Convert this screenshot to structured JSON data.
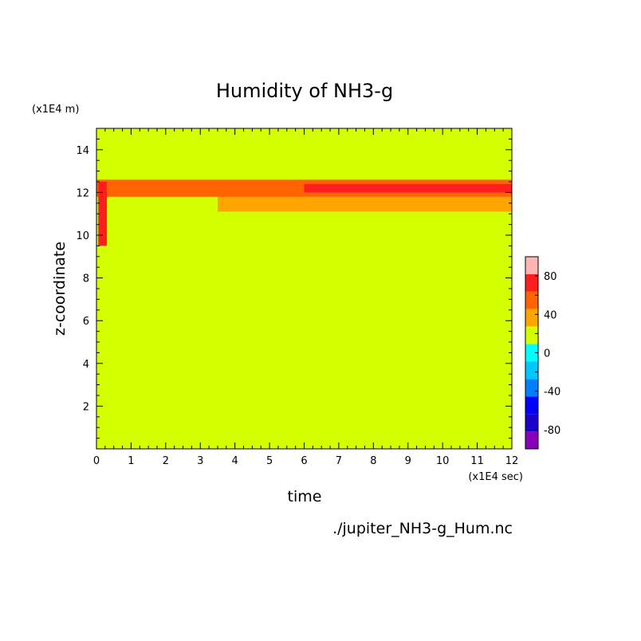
{
  "chart_data": {
    "type": "heatmap",
    "title": "Humidity of NH3-g",
    "xlabel": "time",
    "ylabel": "z-coordinate",
    "x_units": "(x1E4 sec)",
    "y_units": "(x1E4 m)",
    "xlim": [
      0,
      12
    ],
    "ylim": [
      0,
      15
    ],
    "x_ticks": [
      "0",
      "1",
      "2",
      "3",
      "4",
      "5",
      "6",
      "7",
      "8",
      "9",
      "10",
      "11",
      "12"
    ],
    "y_ticks": [
      "2",
      "4",
      "6",
      "8",
      "10",
      "12",
      "14"
    ],
    "source_label": "./jupiter_NH3-g_Hum.nc",
    "colorbar": {
      "levels": [
        -100,
        -80,
        -60,
        -40,
        -20,
        0,
        20,
        40,
        60,
        80,
        100
      ],
      "colors": [
        "#8a00b8",
        "#1a00c8",
        "#0000ff",
        "#0080ff",
        "#00c8ff",
        "#00ffff",
        "#d4ff00",
        "#ffa500",
        "#ff6400",
        "#ff1e1e",
        "#ffb4b4"
      ],
      "tick_labels": [
        "-80",
        "-40",
        "0",
        "40",
        "80"
      ]
    },
    "background_value_band": "0 to 20",
    "bands": [
      {
        "range": "20-40",
        "z_bottom": 9.1,
        "z_top": 12.7,
        "t_start": 0.0,
        "t_end": 12.0
      },
      {
        "range": "40-60",
        "z_bottom": 11.1,
        "z_top": 12.5,
        "t_start": 3.5,
        "t_end": 12.0
      },
      {
        "range": "60-80",
        "z_bottom": 11.8,
        "z_top": 12.6,
        "t_start": 0.0,
        "t_end": 12.0
      },
      {
        "range": "80-100",
        "z_bottom": 12.0,
        "z_top": 12.4,
        "t_start": 6.0,
        "t_end": 12.0
      },
      {
        "range": "80-100",
        "z_bottom": 9.5,
        "z_top": 12.5,
        "t_start": 0.05,
        "t_end": 0.3
      }
    ]
  }
}
